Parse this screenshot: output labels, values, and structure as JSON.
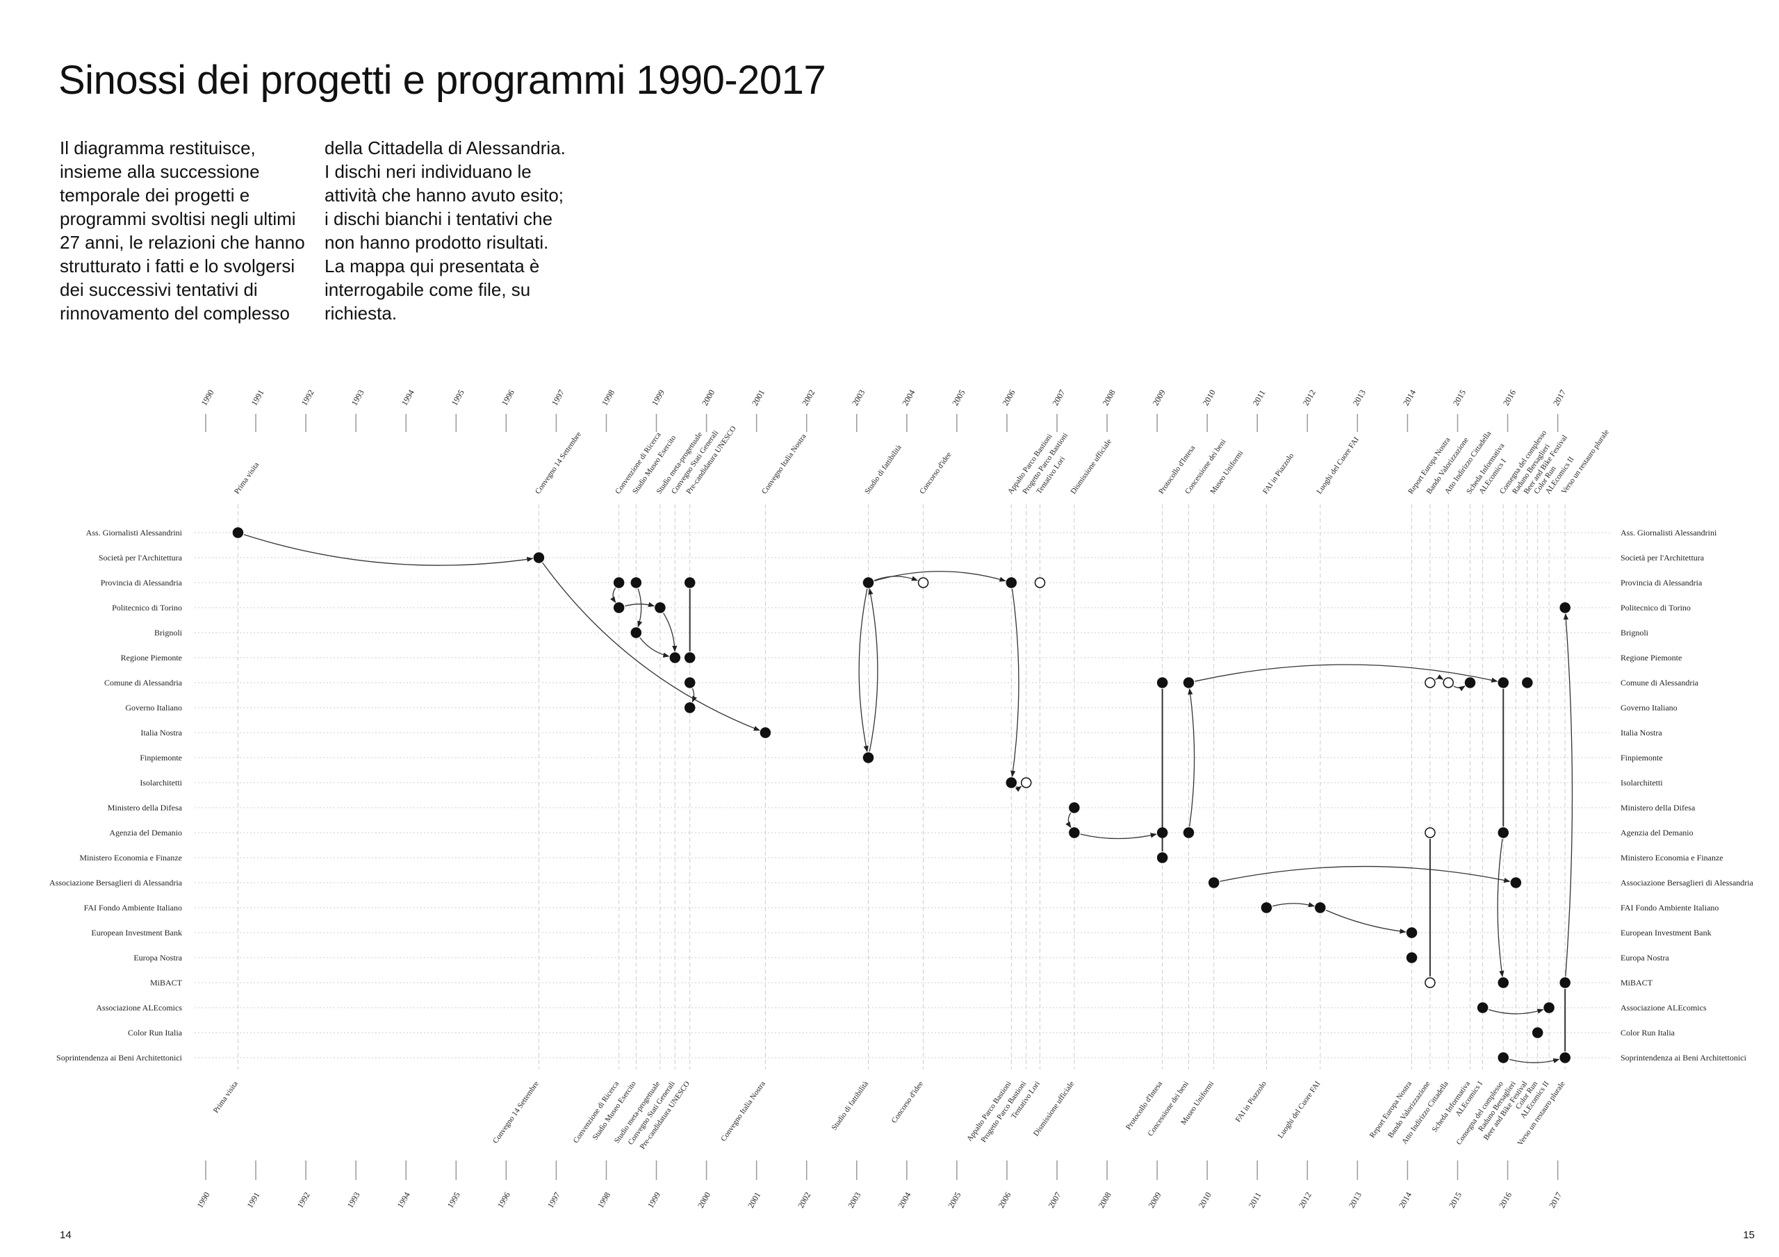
{
  "title": "Sinossi dei progetti e programmi 1990-2017",
  "intro": {
    "columns": [
      [
        "Il diagramma restituisce,",
        "insieme alla successione",
        "temporale dei progetti e",
        "programmi svoltisi negli ultimi",
        "27 anni, le relazioni che hanno",
        "strutturato i fatti e lo svolgersi",
        "dei successivi tentativi di",
        "rinnovamento del complesso"
      ],
      [
        "della Cittadella di Alessandria.",
        "I dischi neri individuano le",
        "attività che hanno avuto esito;",
        "i dischi bianchi i tentativi che",
        "non hanno prodotto risultati.",
        "La mappa qui presentata è",
        "interrogabile come file, su",
        "richiesta."
      ]
    ]
  },
  "years": [
    1990,
    1991,
    1992,
    1993,
    1994,
    1995,
    1996,
    1997,
    1998,
    1999,
    2000,
    2001,
    2002,
    2003,
    2004,
    2005,
    2006,
    2007,
    2008,
    2009,
    2010,
    2011,
    2012,
    2013,
    2014,
    2015,
    2016,
    2017
  ],
  "events": [
    "Prima visita",
    "Convegno 14 Settembre",
    "Convenzione di Ricerca",
    "Studio Museo Esercito",
    "Studio meta-progettuale",
    "Convegno Stati Generali",
    "Pre-candidatura UNESCO",
    "Convegno Italia Nostra",
    "Studio di fattibilità",
    "Concorso d'idee",
    "Appalto Parco Bastioni",
    "Progetto Parco Bastioni",
    "Tentativo Lori",
    "Dismissione ufficiale",
    "Protocollo d'Intesa",
    "Concessione dei beni",
    "Museo Uniformi",
    "FAI in Piazzolo",
    "Luoghi del Cuore FAI",
    "Report Europa Nostra",
    "Bando Valorizzazione",
    "Atto Indirizzo Cittadella",
    "Scheda Informativa",
    "ALEcomics I",
    "Consegna del complesso",
    "Raduno Bersaglieri",
    "Beer and Bike Festival",
    "Color Run",
    "ALEcomics II",
    "Verso un restauro plurale"
  ],
  "actors": [
    "Ass. Giornalisti Alessandrini",
    "Società per l'Architettura",
    "Provincia di Alessandria",
    "Politecnico di Torino",
    "Brignoli",
    "Regione Piemonte",
    "Comune di Alessandria",
    "Governo Italiano",
    "Italia Nostra",
    "Finpiemonte",
    "Isolarchitetti",
    "Ministero della Difesa",
    "Agenzia del Demanio",
    "Ministero Economia e Finanze",
    "Associazione Bersaglieri di Alessandria",
    "FAI Fondo Ambiente Italiano",
    "European Investment Bank",
    "Europa Nostra",
    "MiBACT",
    "Associazione ALEcomics",
    "Color Run Italia",
    "Soprintendenza ai Beni Architettonici"
  ],
  "page_numbers": [
    "14",
    "15"
  ]
}
